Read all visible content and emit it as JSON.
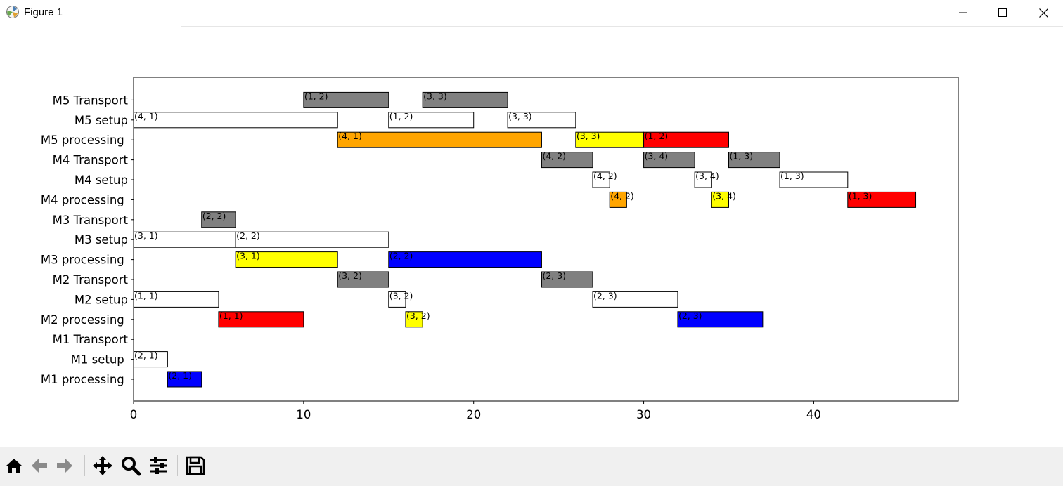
{
  "window": {
    "title": "Figure 1",
    "icons": {
      "app": "matplotlib-icon",
      "minimize": "minimize-icon",
      "maximize": "maximize-icon",
      "close": "close-icon"
    }
  },
  "toolbar": {
    "buttons": [
      "home-icon",
      "back-arrow-icon",
      "forward-arrow-icon",
      "pan-icon",
      "zoom-icon",
      "configure-subplots-icon",
      "save-icon"
    ]
  },
  "chart_data": {
    "type": "gantt",
    "title": "",
    "xlabel": "",
    "ylabel": "",
    "xlim": [
      0,
      48.5
    ],
    "xticks": [
      0,
      10,
      20,
      30,
      40
    ],
    "rows": [
      "M1 processing ",
      "M1 setup ",
      "M1 Transport",
      "M2 processing ",
      "M2 setup",
      "M2 Transport",
      "M3 processing ",
      "M3 setup",
      "M3 Transport",
      "M4 processing ",
      "M4 setup",
      "M4 Transport",
      "M5 processing ",
      "M5 setup",
      "M5 Transport"
    ],
    "tasks": [
      {
        "row": 0,
        "start": 2,
        "end": 4,
        "label": "(2, 1)",
        "color": "#0000ff"
      },
      {
        "row": 1,
        "start": 0,
        "end": 2,
        "label": "(2, 1)",
        "color": "#ffffff"
      },
      {
        "row": 3,
        "start": 5,
        "end": 10,
        "label": "(1, 1)",
        "color": "#ff0000"
      },
      {
        "row": 3,
        "start": 16,
        "end": 17,
        "label": "(3, 2)",
        "color": "#ffff00"
      },
      {
        "row": 3,
        "start": 32,
        "end": 37,
        "label": "(2, 3)",
        "color": "#0000ff"
      },
      {
        "row": 4,
        "start": 0,
        "end": 5,
        "label": "(1, 1)",
        "color": "#ffffff"
      },
      {
        "row": 4,
        "start": 15,
        "end": 16,
        "label": "(3, 2)",
        "color": "#ffffff"
      },
      {
        "row": 4,
        "start": 27,
        "end": 32,
        "label": "(2, 3)",
        "color": "#ffffff"
      },
      {
        "row": 5,
        "start": 12,
        "end": 15,
        "label": "(3, 2)",
        "color": "#808080"
      },
      {
        "row": 5,
        "start": 24,
        "end": 27,
        "label": "(2, 3)",
        "color": "#808080"
      },
      {
        "row": 6,
        "start": 6,
        "end": 12,
        "label": "(3, 1)",
        "color": "#ffff00"
      },
      {
        "row": 6,
        "start": 15,
        "end": 24,
        "label": "(2, 2)",
        "color": "#0000ff"
      },
      {
        "row": 7,
        "start": 0,
        "end": 6,
        "label": "(3, 1)",
        "color": "#ffffff"
      },
      {
        "row": 7,
        "start": 6,
        "end": 15,
        "label": "(2, 2)",
        "color": "#ffffff"
      },
      {
        "row": 8,
        "start": 4,
        "end": 6,
        "label": "(2, 2)",
        "color": "#808080"
      },
      {
        "row": 9,
        "start": 28,
        "end": 29,
        "label": "(4, 2)",
        "color": "#ffa500"
      },
      {
        "row": 9,
        "start": 34,
        "end": 35,
        "label": "(3, 4)",
        "color": "#ffff00"
      },
      {
        "row": 9,
        "start": 42,
        "end": 46,
        "label": "(1, 3)",
        "color": "#ff0000"
      },
      {
        "row": 10,
        "start": 27,
        "end": 28,
        "label": "(4, 2)",
        "color": "#ffffff"
      },
      {
        "row": 10,
        "start": 33,
        "end": 34,
        "label": "(3, 4)",
        "color": "#ffffff"
      },
      {
        "row": 10,
        "start": 38,
        "end": 42,
        "label": "(1, 3)",
        "color": "#ffffff"
      },
      {
        "row": 11,
        "start": 24,
        "end": 27,
        "label": "(4, 2)",
        "color": "#808080"
      },
      {
        "row": 11,
        "start": 30,
        "end": 33,
        "label": "(3, 4)",
        "color": "#808080"
      },
      {
        "row": 11,
        "start": 35,
        "end": 38,
        "label": "(1, 3)",
        "color": "#808080"
      },
      {
        "row": 12,
        "start": 12,
        "end": 24,
        "label": "(4, 1)",
        "color": "#ffa500"
      },
      {
        "row": 12,
        "start": 26,
        "end": 30,
        "label": "(3, 3)",
        "color": "#ffff00"
      },
      {
        "row": 12,
        "start": 30,
        "end": 35,
        "label": "(1, 2)",
        "color": "#ff0000"
      },
      {
        "row": 13,
        "start": 0,
        "end": 12,
        "label": "(4, 1)",
        "color": "#ffffff"
      },
      {
        "row": 13,
        "start": 15,
        "end": 20,
        "label": "(1, 2)",
        "color": "#ffffff"
      },
      {
        "row": 13,
        "start": 22,
        "end": 26,
        "label": "(3, 3)",
        "color": "#ffffff"
      },
      {
        "row": 14,
        "start": 10,
        "end": 15,
        "label": "(1, 2)",
        "color": "#808080"
      },
      {
        "row": 14,
        "start": 17,
        "end": 22,
        "label": "(3, 3)",
        "color": "#808080"
      }
    ],
    "grid": false,
    "legend": "none"
  }
}
